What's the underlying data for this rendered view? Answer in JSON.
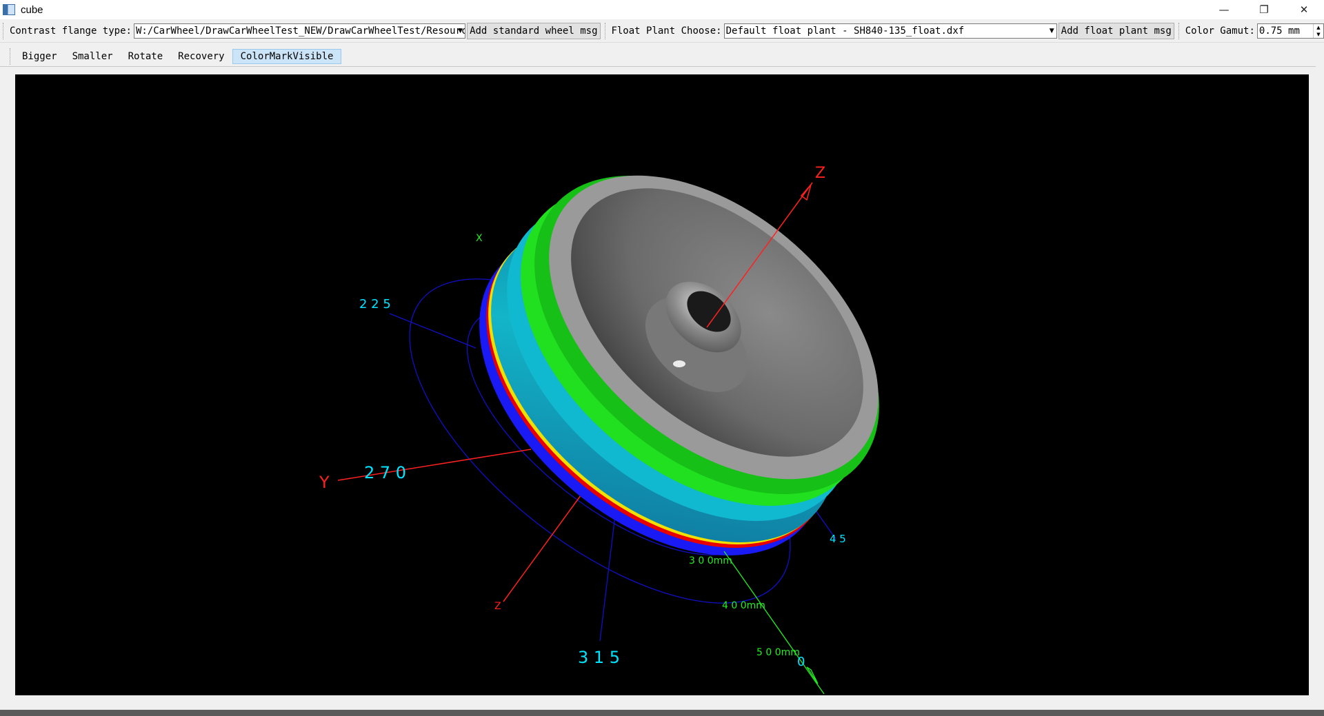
{
  "window": {
    "title": "cube",
    "controls": {
      "minimize": "—",
      "restore": "❐",
      "close": "✕"
    }
  },
  "toolbar": {
    "flange_label": "Contrast flange type:",
    "flange_path": "W:/CarWheel/DrawCarWheelTest_NEW/DrawCarWheelTest/Resources/",
    "add_standard_btn": "Add standard wheel msg",
    "float_plant_label": "Float Plant Choose:",
    "float_plant_value": "Default float plant - SH840-135_float.dxf",
    "add_float_btn": "Add float plant msg",
    "color_gamut_label": "Color Gamut:",
    "color_gamut_value": "0.75 mm"
  },
  "view_toolbar": {
    "bigger": "Bigger",
    "smaller": "Smaller",
    "rotate": "Rotate",
    "recovery": "Recovery",
    "color_mark": "ColorMarkVisible"
  },
  "viewport": {
    "background": "#000000",
    "axis_labels": {
      "z_top": "Z",
      "x_small": "X",
      "y": "Y",
      "z_bottom": "Z"
    },
    "angle_labels": {
      "a225": "2 2 5",
      "a270": "2 7 0",
      "a315": "3 1 5",
      "a45": "4 5",
      "a0": "0"
    },
    "radius_labels": {
      "r300": "3 0 0mm",
      "r400": "4 0 0mm",
      "r500": "5 0 0mm"
    },
    "colors": {
      "axis": "#ff2020",
      "grid": "#1010c8",
      "angle_text": "#00e5ff",
      "radius_text": "#22ee22"
    }
  }
}
